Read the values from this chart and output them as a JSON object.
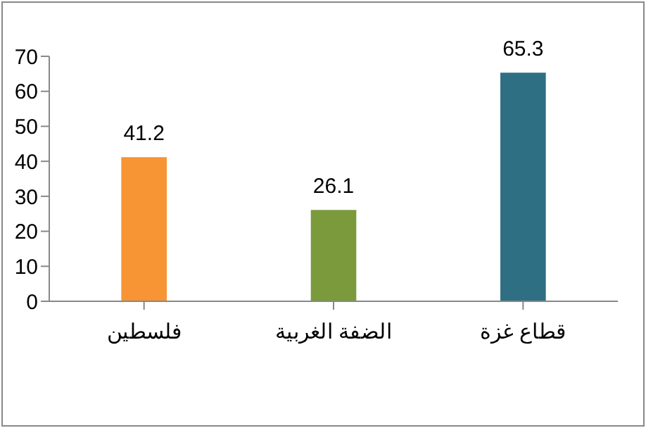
{
  "chart_data": {
    "type": "bar",
    "categories": [
      "فلسطين",
      "الضفة الغربية",
      "قطاع غزة"
    ],
    "values": [
      41.2,
      26.1,
      65.3
    ],
    "colors": [
      "#f79433",
      "#7a9a3c",
      "#2f6f84"
    ],
    "ylim": [
      0,
      70
    ],
    "yticks": [
      0,
      10,
      20,
      30,
      40,
      50,
      60,
      70
    ],
    "data_labels": true,
    "grid": false,
    "legend": false
  }
}
